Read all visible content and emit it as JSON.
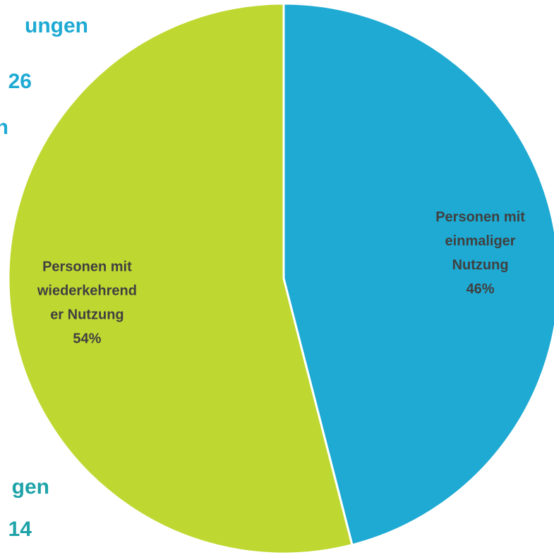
{
  "chart_data": {
    "type": "pie",
    "categories": [
      [
        "Personen mit",
        "einmaliger",
        "Nutzung"
      ],
      [
        "Personen mit",
        "wiederkehrend",
        "er Nutzung"
      ]
    ],
    "values": [
      46,
      54
    ],
    "value_labels": [
      "46%",
      "54%"
    ],
    "colors": [
      "#1eaad3",
      "#bfd831"
    ],
    "annotations": [
      {
        "text": "ungen",
        "color": "#1eaad3"
      },
      {
        "text": "26",
        "color": "#1eaad3"
      },
      {
        "text": "n",
        "color": "#1eaad3"
      },
      {
        "text": "gen",
        "color": "#1ea3a9"
      },
      {
        "text": "14",
        "color": "#1ea3a9"
      }
    ]
  }
}
